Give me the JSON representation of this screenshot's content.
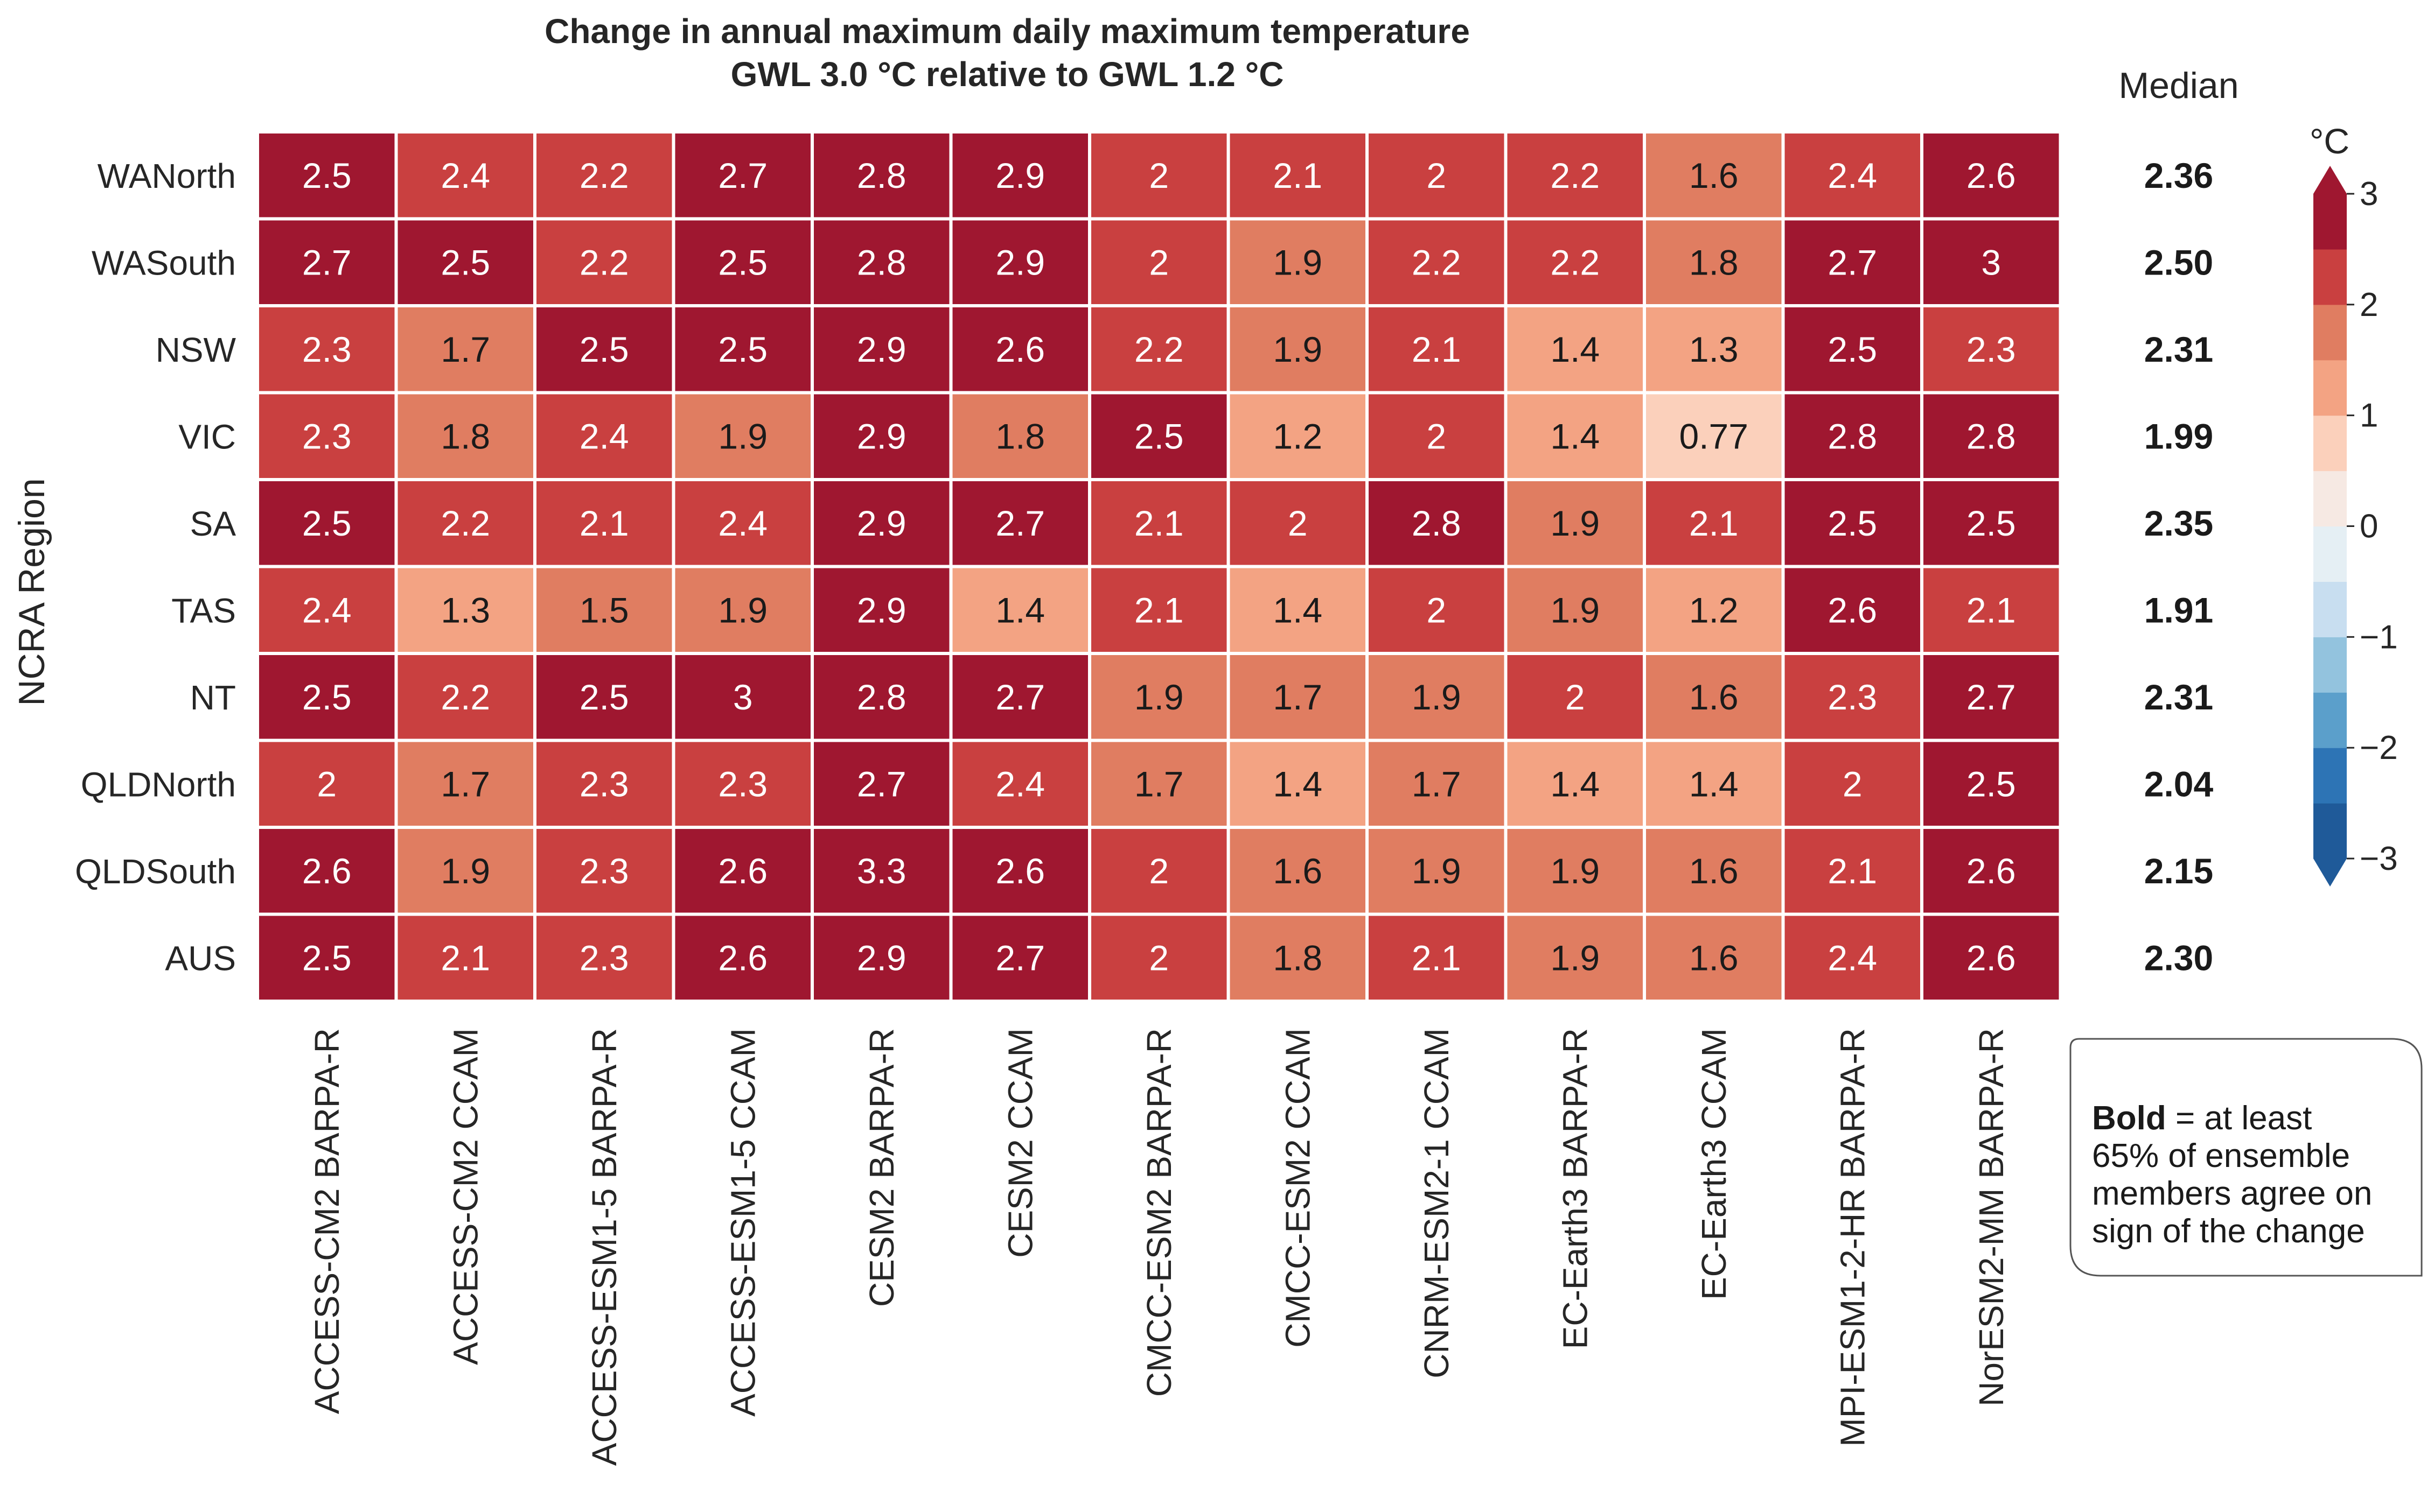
{
  "colors": {
    "bins": [
      "#1f5a99",
      "#2d74b5",
      "#5b9fcb",
      "#93c3de",
      "#c8def0",
      "#e5eff4",
      "#f6e9e3",
      "#fbd0bb",
      "#f3a383",
      "#e07d61",
      "#c94040",
      "#9f1730"
    ],
    "cell_border": "#ffffff",
    "text_dark": "#1a1a1a",
    "text_light": "#ffffff"
  },
  "chart_data": {
    "type": "heatmap",
    "title": "Change in annual maximum daily maximum temperature",
    "subtitle": "GWL 3.0 °C relative to GWL 1.2 °C",
    "ylabel": "NCRA Region",
    "rows": [
      "WANorth",
      "WASouth",
      "NSW",
      "VIC",
      "SA",
      "TAS",
      "NT",
      "QLDNorth",
      "QLDSouth",
      "AUS"
    ],
    "columns": [
      "ACCESS-CM2 BARPA-R",
      "ACCESS-CM2 CCAM",
      "ACCESS-ESM1-5 BARPA-R",
      "ACCESS-ESM1-5 CCAM",
      "CESM2 BARPA-R",
      "CESM2 CCAM",
      "CMCC-ESM2 BARPA-R",
      "CMCC-ESM2 CCAM",
      "CNRM-ESM2-1 CCAM",
      "EC-Earth3 BARPA-R",
      "EC-Earth3 CCAM",
      "MPI-ESM1-2-HR BARPA-R",
      "NorESM2-MM BARPA-R"
    ],
    "values": [
      [
        2.5,
        2.4,
        2.2,
        2.7,
        2.8,
        2.9,
        2,
        2.1,
        2,
        2.2,
        1.6,
        2.4,
        2.6
      ],
      [
        2.7,
        2.5,
        2.2,
        2.5,
        2.8,
        2.9,
        2,
        1.9,
        2.2,
        2.2,
        1.8,
        2.7,
        3
      ],
      [
        2.3,
        1.7,
        2.5,
        2.5,
        2.9,
        2.6,
        2.2,
        1.9,
        2.1,
        1.4,
        1.3,
        2.5,
        2.3
      ],
      [
        2.3,
        1.8,
        2.4,
        1.9,
        2.9,
        1.8,
        2.5,
        1.2,
        2,
        1.4,
        0.77,
        2.8,
        2.8
      ],
      [
        2.5,
        2.2,
        2.1,
        2.4,
        2.9,
        2.7,
        2.1,
        2,
        2.8,
        1.9,
        2.1,
        2.5,
        2.5
      ],
      [
        2.4,
        1.3,
        1.5,
        1.9,
        2.9,
        1.4,
        2.1,
        1.4,
        2,
        1.9,
        1.2,
        2.6,
        2.1
      ],
      [
        2.5,
        2.2,
        2.5,
        3,
        2.8,
        2.7,
        1.9,
        1.7,
        1.9,
        2,
        1.6,
        2.3,
        2.7
      ],
      [
        2,
        1.7,
        2.3,
        2.3,
        2.7,
        2.4,
        1.7,
        1.4,
        1.7,
        1.4,
        1.4,
        2,
        2.5
      ],
      [
        2.6,
        1.9,
        2.3,
        2.6,
        3.3,
        2.6,
        2,
        1.6,
        1.9,
        1.9,
        1.6,
        2.1,
        2.6
      ],
      [
        2.5,
        2.1,
        2.3,
        2.6,
        2.9,
        2.7,
        2,
        1.8,
        2.1,
        1.9,
        1.6,
        2.4,
        2.6
      ]
    ],
    "labels": [
      [
        "2.5",
        "2.4",
        "2.2",
        "2.7",
        "2.8",
        "2.9",
        "2",
        "2.1",
        "2",
        "2.2",
        "1.6",
        "2.4",
        "2.6"
      ],
      [
        "2.7",
        "2.5",
        "2.2",
        "2.5",
        "2.8",
        "2.9",
        "2",
        "1.9",
        "2.2",
        "2.2",
        "1.8",
        "2.7",
        "3"
      ],
      [
        "2.3",
        "1.7",
        "2.5",
        "2.5",
        "2.9",
        "2.6",
        "2.2",
        "1.9",
        "2.1",
        "1.4",
        "1.3",
        "2.5",
        "2.3"
      ],
      [
        "2.3",
        "1.8",
        "2.4",
        "1.9",
        "2.9",
        "1.8",
        "2.5",
        "1.2",
        "2",
        "1.4",
        "0.77",
        "2.8",
        "2.8"
      ],
      [
        "2.5",
        "2.2",
        "2.1",
        "2.4",
        "2.9",
        "2.7",
        "2.1",
        "2",
        "2.8",
        "1.9",
        "2.1",
        "2.5",
        "2.5"
      ],
      [
        "2.4",
        "1.3",
        "1.5",
        "1.9",
        "2.9",
        "1.4",
        "2.1",
        "1.4",
        "2",
        "1.9",
        "1.2",
        "2.6",
        "2.1"
      ],
      [
        "2.5",
        "2.2",
        "2.5",
        "3",
        "2.8",
        "2.7",
        "1.9",
        "1.7",
        "1.9",
        "2",
        "1.6",
        "2.3",
        "2.7"
      ],
      [
        "2",
        "1.7",
        "2.3",
        "2.3",
        "2.7",
        "2.4",
        "1.7",
        "1.4",
        "1.7",
        "1.4",
        "1.4",
        "2",
        "2.5"
      ],
      [
        "2.6",
        "1.9",
        "2.3",
        "2.6",
        "3.3",
        "2.6",
        "2",
        "1.6",
        "1.9",
        "1.9",
        "1.6",
        "2.1",
        "2.6"
      ],
      [
        "2.5",
        "2.1",
        "2.3",
        "2.6",
        "2.9",
        "2.7",
        "2",
        "1.8",
        "2.1",
        "1.9",
        "1.6",
        "2.4",
        "2.6"
      ]
    ],
    "median": {
      "label": "Median",
      "values": [
        "2.36",
        "2.50",
        "2.31",
        "1.99",
        "2.35",
        "1.91",
        "2.31",
        "2.04",
        "2.15",
        "2.30"
      ]
    },
    "colorbar": {
      "unit": "°C",
      "range": [
        -3,
        3
      ],
      "step": 0.5,
      "ticks": [
        {
          "value": 3,
          "label": "3"
        },
        {
          "value": 2,
          "label": "2"
        },
        {
          "value": 1,
          "label": "1"
        },
        {
          "value": 0,
          "label": "0"
        },
        {
          "value": -1,
          "label": "−1"
        },
        {
          "value": -2,
          "label": "−2"
        },
        {
          "value": -3,
          "label": "−3"
        }
      ],
      "extend": "both"
    },
    "note": {
      "bold": "Bold",
      "line1_rest": " = at least",
      "line2": "65% of ensemble",
      "line3": "members agree on",
      "line4": "sign of the change"
    }
  }
}
